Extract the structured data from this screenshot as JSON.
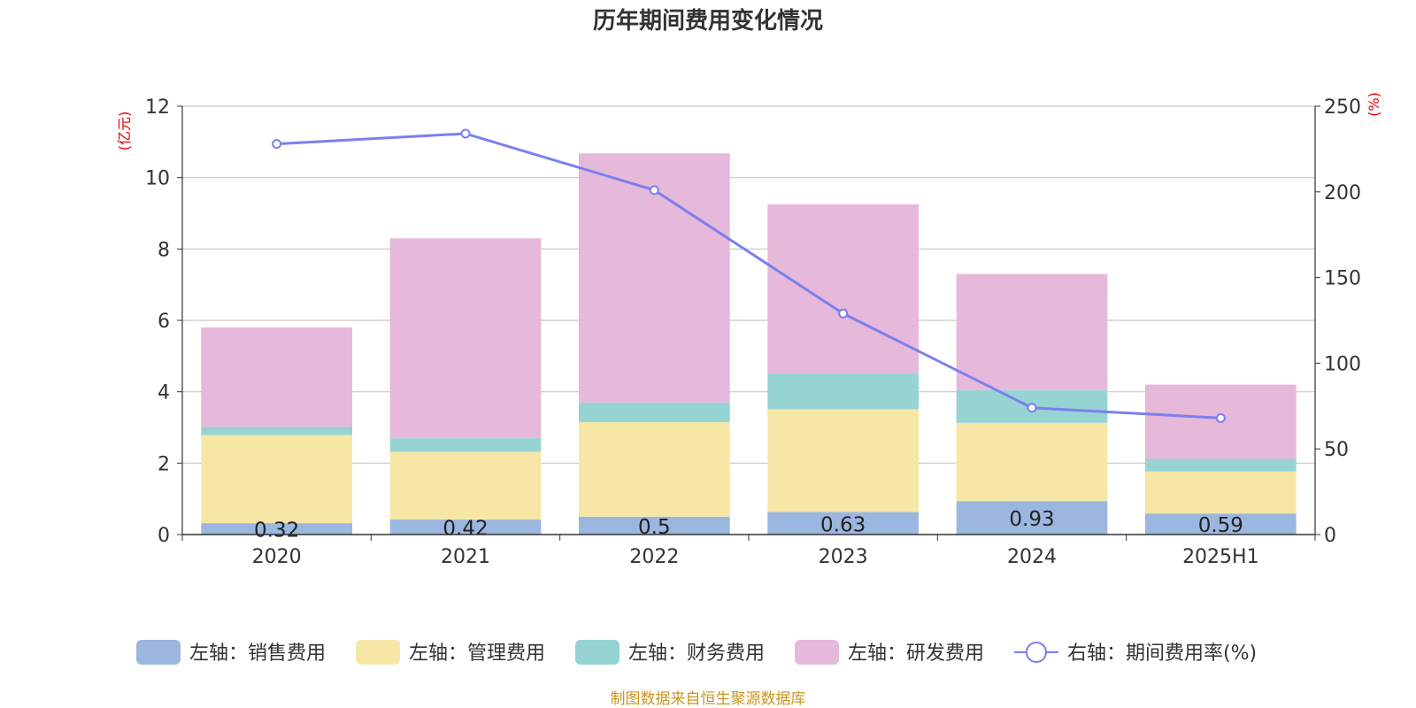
{
  "chart_data": {
    "type": "bar",
    "stacked": true,
    "title": "历年期间费用变化情况",
    "categories": [
      "2020",
      "2021",
      "2022",
      "2023",
      "2024",
      "2025H1"
    ],
    "y_left": {
      "label": "(亿元)",
      "range": [
        0,
        12
      ],
      "ticks": [
        "0",
        "2",
        "4",
        "6",
        "8",
        "10",
        "12"
      ]
    },
    "y_right": {
      "label": "(%)",
      "range": [
        0,
        250
      ],
      "ticks": [
        "0",
        "50",
        "100",
        "150",
        "200",
        "250"
      ]
    },
    "series": [
      {
        "name": "左轴：销售费用",
        "axis": "left",
        "type": "bar",
        "color": "#9bb7e0",
        "values": [
          0.32,
          0.42,
          0.5,
          0.63,
          0.93,
          0.59
        ],
        "data_labels": [
          "0.32",
          "0.42",
          "0.5",
          "0.63",
          "0.93",
          "0.59"
        ]
      },
      {
        "name": "左轴：管理费用",
        "axis": "left",
        "type": "bar",
        "color": "#f7e7a6",
        "values": [
          2.47,
          1.9,
          2.65,
          2.88,
          2.2,
          1.18
        ]
      },
      {
        "name": "左轴：财务费用",
        "axis": "left",
        "type": "bar",
        "color": "#96d3d3",
        "values": [
          0.23,
          0.38,
          0.55,
          1.0,
          0.92,
          0.35
        ]
      },
      {
        "name": "左轴：研发费用",
        "axis": "left",
        "type": "bar",
        "color": "#e6b8d9",
        "values": [
          2.78,
          5.6,
          6.98,
          4.74,
          3.25,
          2.08
        ]
      },
      {
        "name": "右轴：期间费用率(%)",
        "axis": "right",
        "type": "line",
        "color": "#7b7ff0",
        "values": [
          228,
          234,
          201,
          129,
          74,
          68
        ]
      }
    ],
    "legend_position": "bottom",
    "grid": true
  },
  "source_note": "制图数据来自恒生聚源数据库"
}
